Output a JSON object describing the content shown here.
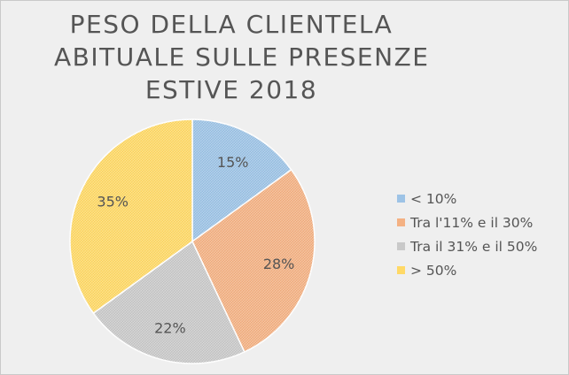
{
  "chart_data": {
    "type": "pie",
    "title": "PESO DELLA CLIENTELA ABITUALE SULLE PRESENZE ESTIVE 2018",
    "title_lines": [
      "PESO DELLA CLIENTELA",
      "ABITUALE SULLE PRESENZE",
      "ESTIVE 2018"
    ],
    "categories": [
      "< 10%",
      "Tra l'11% e il 30%",
      "Tra il 31% e il 50%",
      "> 50%"
    ],
    "values": [
      15,
      28,
      22,
      35
    ],
    "data_labels": [
      "15%",
      "28%",
      "22%",
      "35%"
    ],
    "colors": [
      "#9dc3e6",
      "#f4b183",
      "#c9c9c9",
      "#ffd966"
    ],
    "legend_position": "right",
    "start_angle_deg": 0,
    "direction": "clockwise"
  }
}
